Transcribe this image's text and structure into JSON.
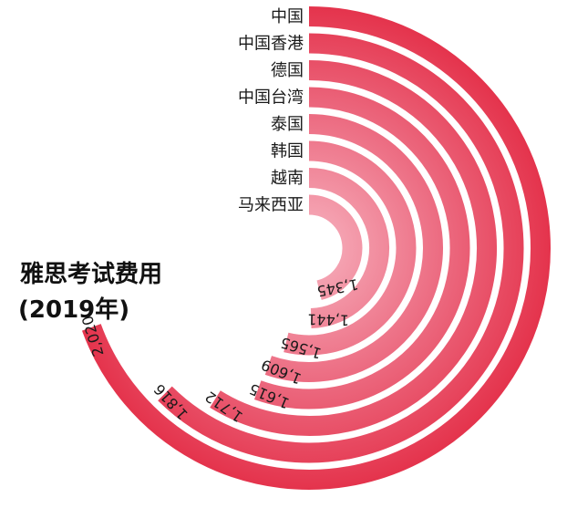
{
  "chart_data": {
    "type": "radial-bar",
    "title": "雅思考试费用",
    "subtitle": "(2019年)",
    "categories": [
      "中国",
      "中国香港",
      "德国",
      "中国台湾",
      "泰国",
      "韩国",
      "越南",
      "马来西亚"
    ],
    "values": [
      2020,
      1816,
      1712,
      1615,
      1609,
      1565,
      1441,
      1345
    ],
    "value_labels": [
      "2,020",
      "1,816",
      "1,712",
      "1,615",
      "1,609",
      "1,565",
      "1,441",
      "1,345"
    ],
    "max": 2020
  },
  "colors": {
    "bar_outer": "#e5334a",
    "bar_inner": "#f4a7b5",
    "text": "#1a1a1a"
  }
}
